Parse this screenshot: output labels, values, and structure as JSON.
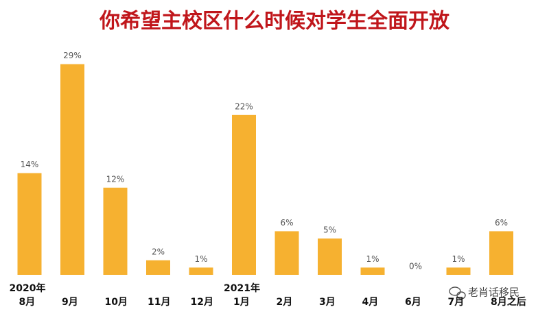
{
  "chart_data": {
    "type": "bar",
    "title": "你希望主校区什么时候对学生全面开放",
    "categories": [
      "8月",
      "9月",
      "10月",
      "11月",
      "12月",
      "1月",
      "2月",
      "3月",
      "4月",
      "6月",
      "7月",
      "8月之后"
    ],
    "values": [
      14,
      29,
      12,
      2,
      1,
      22,
      6,
      5,
      1,
      0,
      1,
      6
    ],
    "value_labels": [
      "14%",
      "29%",
      "12%",
      "2%",
      "1%",
      "22%",
      "6%",
      "5%",
      "1%",
      "0%",
      "1%",
      "6%"
    ],
    "annotations": [
      "2020年",
      "2021年"
    ],
    "color": "#f6b130",
    "watermark": "老肖话移民"
  }
}
